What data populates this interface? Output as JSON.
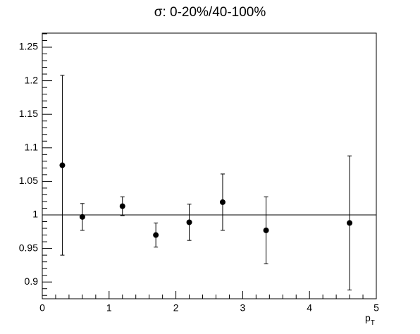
{
  "chart_data": {
    "type": "scatter",
    "title": "σ: 0-20%/40-100%",
    "x_label": {
      "main": "p",
      "sub": "T"
    },
    "x": [
      0.3,
      0.6,
      1.2,
      1.7,
      2.2,
      2.7,
      3.35,
      4.6
    ],
    "values": [
      1.074,
      0.997,
      1.013,
      0.97,
      0.989,
      1.019,
      0.977,
      0.988
    ],
    "errors": [
      0.134,
      0.02,
      0.014,
      0.018,
      0.027,
      0.042,
      0.05,
      0.1
    ],
    "color": "#000000",
    "reference_line": 1,
    "xlim": [
      0,
      5
    ],
    "xticks": [
      0,
      1,
      2,
      3,
      4,
      5
    ],
    "ylim": [
      0.875,
      1.271
    ],
    "yticks": [
      0.9,
      0.95,
      1,
      1.05,
      1.1,
      1.15,
      1.2,
      1.25
    ],
    "grid": false
  }
}
